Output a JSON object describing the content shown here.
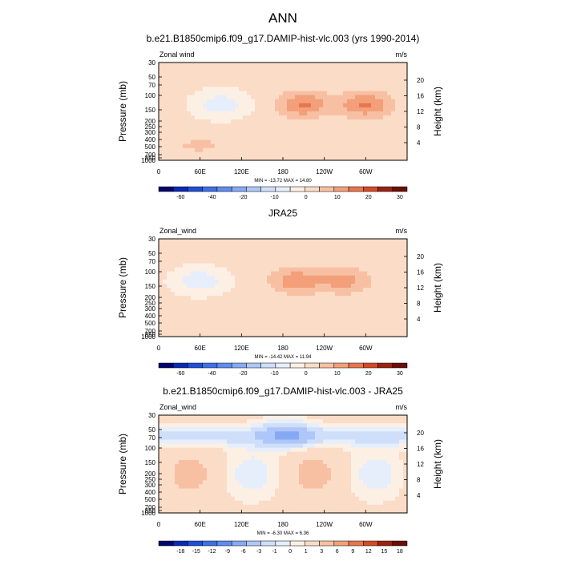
{
  "figure": {
    "title": "ANN"
  },
  "chart_data": [
    {
      "type": "heatmap",
      "title": "b.e21.B1850cmip6.f09_g17.DAMIP-hist-vlc.003 (yrs 1990-2014)",
      "variable_label": "Zonal wind",
      "units": "m/s",
      "ylabel": "Pressure (mb)",
      "ylabel_right": "Height (km)",
      "stats": "MIN = -13.72  MAX =  14.80",
      "min": -13.72,
      "max": 14.8,
      "x_ticks": [
        "0",
        "60E",
        "120E",
        "180",
        "120W",
        "60W"
      ],
      "y_ticks": [
        "30",
        "50",
        "70",
        "100",
        "150",
        "200",
        "250",
        "300",
        "400",
        "500",
        "700",
        "850",
        "1000"
      ],
      "height_ticks": [
        "20",
        "16",
        "12",
        "8",
        "4"
      ],
      "colorbar": {
        "levels": [
          -70,
          -60,
          -50,
          -40,
          -30,
          -20,
          -15,
          -10,
          -5,
          0,
          5,
          10,
          15,
          20,
          25,
          30
        ],
        "labels": [
          "-60",
          "-40",
          "-20",
          "-10",
          "0",
          "10",
          "20",
          "30"
        ],
        "colors": [
          "#05056e",
          "#0a29b4",
          "#1f4fd6",
          "#3d6fe6",
          "#5f8cef",
          "#86a9f4",
          "#aec6f8",
          "#cfdffa",
          "#e6eefb",
          "#fcf0e4",
          "#fbdcc7",
          "#f8c0a3",
          "#f29f7a",
          "#e8764c",
          "#d44a25",
          "#9b2210",
          "#6b0f06"
        ]
      },
      "features": [
        {
          "kind": "jet",
          "lon": 90,
          "p": 170,
          "value": -10
        },
        {
          "kind": "jet",
          "lon": 210,
          "p": 150,
          "value": 14
        },
        {
          "kind": "jet",
          "lon": 300,
          "p": 150,
          "value": 14
        },
        {
          "kind": "anom",
          "lon": 60,
          "p": 720,
          "value": 5
        }
      ]
    },
    {
      "type": "heatmap",
      "title": "JRA25",
      "variable_label": "Zonal_wind",
      "units": "m/s",
      "ylabel": "Pressure (mb)",
      "ylabel_right": "Height (km)",
      "stats": "MIN = -14.42  MAX =  11.94",
      "min": -14.42,
      "max": 11.94,
      "x_ticks": [
        "0",
        "60E",
        "120E",
        "180",
        "120W",
        "60W"
      ],
      "y_ticks": [
        "30",
        "50",
        "70",
        "100",
        "150",
        "200",
        "250",
        "300",
        "400",
        "500",
        "700",
        "850",
        "1000"
      ],
      "height_ticks": [
        "20",
        "16",
        "12",
        "8",
        "4"
      ],
      "colorbar": {
        "levels": [
          -70,
          -60,
          -50,
          -40,
          -30,
          -20,
          -15,
          -10,
          -5,
          0,
          5,
          10,
          15,
          20,
          25,
          30
        ],
        "labels": [
          "-60",
          "-40",
          "-20",
          "-10",
          "0",
          "10",
          "20",
          "30"
        ],
        "colors": [
          "#05056e",
          "#0a29b4",
          "#1f4fd6",
          "#3d6fe6",
          "#5f8cef",
          "#86a9f4",
          "#aec6f8",
          "#cfdffa",
          "#e6eefb",
          "#fcf0e4",
          "#fbdcc7",
          "#f8c0a3",
          "#f29f7a",
          "#e8764c",
          "#d44a25",
          "#9b2210",
          "#6b0f06"
        ]
      },
      "features": [
        {
          "kind": "jet",
          "lon": 60,
          "p": 170,
          "value": -10
        },
        {
          "kind": "jet",
          "lon": 200,
          "p": 160,
          "value": 12
        },
        {
          "kind": "jet",
          "lon": 270,
          "p": 140,
          "value": 10
        }
      ]
    },
    {
      "type": "heatmap",
      "title": "b.e21.B1850cmip6.f09_g17.DAMIP-hist-vlc.003 - JRA25",
      "variable_label": "Zonal_wind",
      "units": "m/s",
      "ylabel": "Pressure (mb)",
      "ylabel_right": "Height (km)",
      "stats": "MIN =  -6.30  MAX =  6.36",
      "min": -6.3,
      "max": 6.36,
      "x_ticks": [
        "0",
        "60E",
        "120E",
        "180",
        "120W",
        "60W"
      ],
      "y_ticks": [
        "30",
        "50",
        "70",
        "100",
        "150",
        "200",
        "250",
        "300",
        "400",
        "500",
        "700",
        "850",
        "1000"
      ],
      "height_ticks": [
        "20",
        "16",
        "12",
        "8",
        "4"
      ],
      "colorbar": {
        "levels": [
          -21,
          -18,
          -15,
          -12,
          -9,
          -6,
          -3,
          -1,
          0,
          1,
          3,
          6,
          9,
          12,
          15,
          18
        ],
        "labels": [
          "-18",
          "-15",
          "-12",
          "-9",
          "-6",
          "-3",
          "-1",
          "0",
          "1",
          "3",
          "6",
          "9",
          "12",
          "15",
          "18"
        ],
        "colors": [
          "#05056e",
          "#0a29b4",
          "#1f4fd6",
          "#3d6fe6",
          "#5f8cef",
          "#86a9f4",
          "#aec6f8",
          "#cfdffa",
          "#e6eefb",
          "#fcf0e4",
          "#fbdcc7",
          "#f8c0a3",
          "#f29f7a",
          "#e8764c",
          "#d44a25",
          "#9b2210",
          "#6b0f06"
        ]
      },
      "features": [
        {
          "kind": "band",
          "p_top": 40,
          "p_bottom": 90,
          "value": -3
        },
        {
          "kind": "jet",
          "lon": 185,
          "p": 60,
          "value": -6
        }
      ]
    }
  ]
}
